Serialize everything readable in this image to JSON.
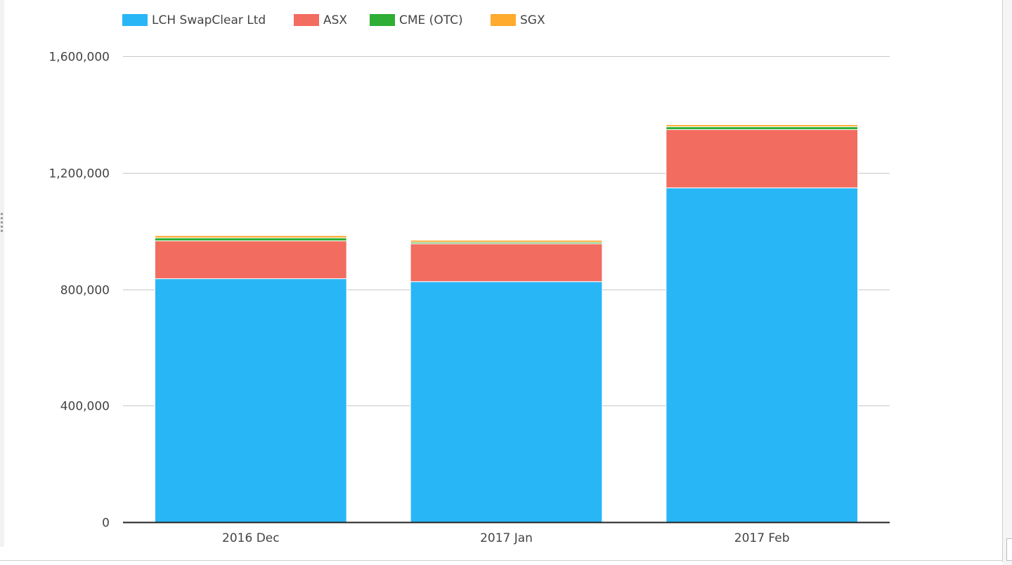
{
  "chart_data": {
    "type": "bar",
    "stacked": true,
    "categories": [
      "2016 Dec",
      "2017 Jan",
      "2017 Feb"
    ],
    "series": [
      {
        "name": "LCH SwapClear Ltd",
        "color": "#29b6f6",
        "values": [
          836000,
          826000,
          1148000
        ]
      },
      {
        "name": "ASX",
        "color": "#f26c5f",
        "values": [
          130000,
          130000,
          200000
        ]
      },
      {
        "name": "CME (OTC)",
        "color": "#2eae34",
        "values": [
          10000,
          5000,
          10000
        ]
      },
      {
        "name": "SGX",
        "color": "#ffab2e",
        "values": [
          8000,
          7000,
          7000
        ]
      }
    ],
    "ylim": [
      0,
      1600000
    ],
    "yticks": [
      0,
      400000,
      800000,
      1200000,
      1600000
    ],
    "ytick_labels": [
      "0",
      "400,000",
      "800,000",
      "1,200,000",
      "1,600,000"
    ],
    "grid": true,
    "legend_position": "top-left",
    "title": "",
    "xlabel": "",
    "ylabel": ""
  }
}
